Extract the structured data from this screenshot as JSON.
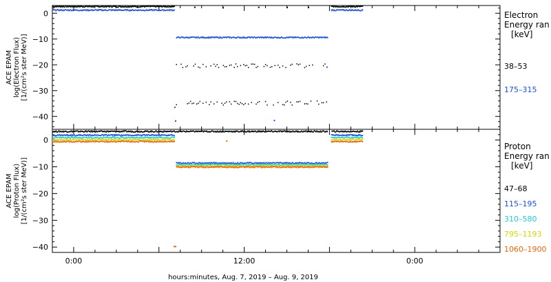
{
  "chart_data": [
    {
      "type": "scatter",
      "panel": "electron",
      "ylabel_lines": [
        "ACE EPAM",
        "log(Electron Flux)",
        "[1/(cm²s ster MeV)]"
      ],
      "ylim": [
        -45,
        3
      ],
      "yticks": [
        0,
        -10,
        -20,
        -30,
        -40
      ],
      "ytick_labels": [
        "0",
        "−10",
        "−20",
        "−30",
        "−40"
      ],
      "legend_title": [
        "Electron",
        "Energy ran",
        "[keV]"
      ],
      "x_span_hours": [
        -3,
        60
      ],
      "series": [
        {
          "name": "38–53",
          "color": "#000000",
          "segments": [
            {
              "x": [
                -3,
                14.2
              ],
              "y": 2.6
            },
            {
              "x": [
                14.4,
                35.7
              ],
              "y": -20.4
            },
            {
              "x": [
                14.4,
                35.7
              ],
              "y": -34.8
            },
            {
              "x": [
                36.2,
                40.6
              ],
              "y": 2.6
            }
          ],
          "scattered_points": [
            [
              17,
              2.3
            ],
            [
              21,
              2.1
            ],
            [
              26,
              2.3
            ],
            [
              30,
              2.2
            ],
            [
              33,
              2.2
            ]
          ]
        },
        {
          "name": "175–315",
          "color": "#1a4fd6",
          "segments": [
            {
              "x": [
                -3,
                14.2
              ],
              "y": 1.2
            },
            {
              "x": [
                14.4,
                35.7
              ],
              "y": -9.4
            },
            {
              "x": [
                36.2,
                40.6
              ],
              "y": 1.2
            }
          ],
          "scattered_points": [
            [
              14.2,
              -36.5
            ],
            [
              14.3,
              -41.8
            ],
            [
              28.2,
              -41.6
            ],
            [
              35.6,
              -20.9
            ]
          ]
        }
      ]
    },
    {
      "type": "scatter",
      "panel": "proton",
      "ylabel_lines": [
        "ACE EPAM",
        "log(Proton Flux)",
        "[1/(cm²s ster MeV)]"
      ],
      "ylim": [
        -42,
        4
      ],
      "yticks": [
        0,
        -10,
        -20,
        -30,
        -40
      ],
      "ytick_labels": [
        "0",
        "−10",
        "−20",
        "−30",
        "−40"
      ],
      "legend_title": [
        "Proton",
        "Energy ran",
        "[keV]"
      ],
      "xticks": [
        0,
        12,
        24,
        36,
        48
      ],
      "xtick_labels": [
        "0:00",
        "",
        "12:00",
        "",
        "0:00"
      ],
      "xlabel": "hours:minutes, Aug.  7, 2019 – Aug.  9, 2019",
      "series": [
        {
          "name": "47–68",
          "color": "#000000",
          "segments": [
            {
              "x": [
                -3,
                40.6
              ],
              "y": 3.2,
              "gap": [
                35.7,
                36.2
              ]
            }
          ]
        },
        {
          "name": "115–195",
          "color": "#1a4fd6",
          "segments": [
            {
              "x": [
                -3,
                14.2
              ],
              "y": 1.8
            },
            {
              "x": [
                14.4,
                35.7
              ],
              "y": -8.6
            },
            {
              "x": [
                36.2,
                40.6
              ],
              "y": 1.8
            }
          ]
        },
        {
          "name": "310–580",
          "color": "#22c9d6",
          "segments": [
            {
              "x": [
                -3,
                14.2
              ],
              "y": 0.9
            },
            {
              "x": [
                14.4,
                35.7
              ],
              "y": -9.2
            },
            {
              "x": [
                36.2,
                40.6
              ],
              "y": 0.9
            }
          ]
        },
        {
          "name": "795–1193",
          "color": "#d6d600",
          "segments": [
            {
              "x": [
                -3,
                14.2
              ],
              "y": 0.1
            },
            {
              "x": [
                14.4,
                35.7
              ],
              "y": -9.7
            },
            {
              "x": [
                36.2,
                40.6
              ],
              "y": 0.1
            }
          ]
        },
        {
          "name": "1060–1900",
          "color": "#e8640a",
          "segments": [
            {
              "x": [
                -3,
                14.2
              ],
              "y": -0.6
            },
            {
              "x": [
                14.4,
                35.7
              ],
              "y": -10.1
            },
            {
              "x": [
                36.2,
                40.6
              ],
              "y": -0.6
            }
          ],
          "scattered_points": [
            [
              14.1,
              -39.8
            ],
            [
              14.3,
              -39.8
            ],
            [
              21.5,
              -0.4
            ]
          ]
        }
      ]
    }
  ]
}
